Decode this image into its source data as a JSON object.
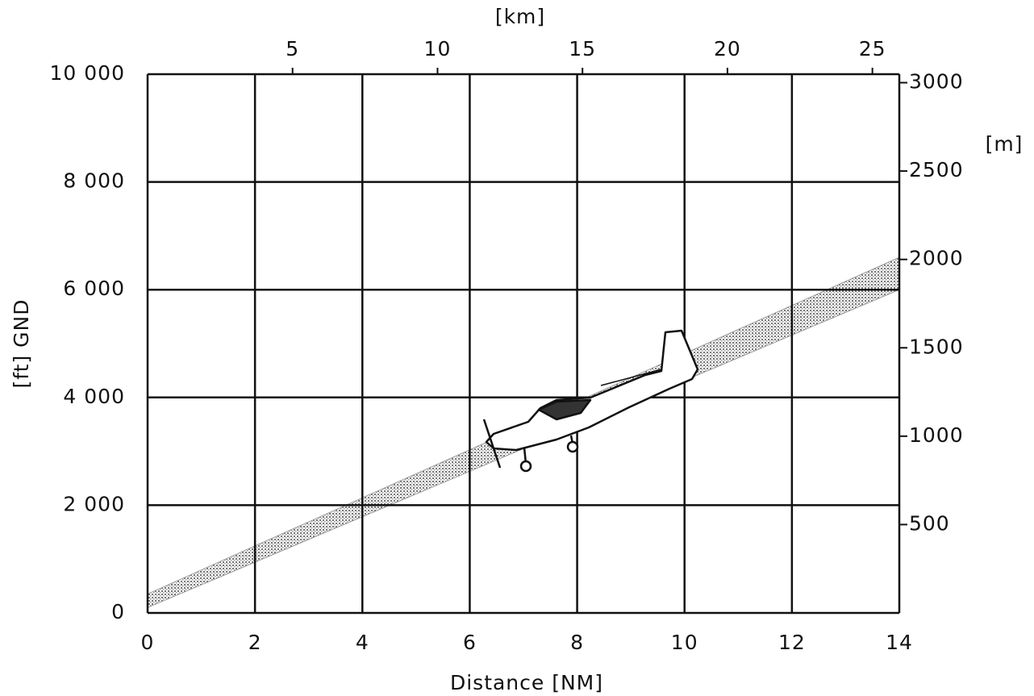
{
  "chart_data": {
    "type": "band",
    "xlabel": "Distance [NM]",
    "ylabel": "[ft] GND",
    "x2label": "[km]",
    "y2label": "[m]",
    "x": [
      0,
      14
    ],
    "series": [
      {
        "color": "#9a9a9a",
        "values": [
          100,
          6000
        ]
      },
      {
        "color": "#9a9a9a",
        "values": [
          350,
          6600
        ]
      }
    ],
    "xlim": [
      0,
      14
    ],
    "xticks": [
      0,
      2,
      4,
      6,
      8,
      10,
      12,
      14
    ],
    "ylim": [
      0,
      10000
    ],
    "yticks": [
      0,
      {
        "value": 2000,
        "label": "2 000"
      },
      {
        "value": 4000,
        "label": "4 000"
      },
      {
        "value": 6000,
        "label": "6 000"
      },
      {
        "value": 8000,
        "label": "8 000"
      },
      {
        "value": 10000,
        "label": "10 000"
      }
    ],
    "x2lim": [
      0,
      25.928
    ],
    "x2ticks": [
      5,
      10,
      15,
      20,
      25
    ],
    "y2lim": [
      0,
      3048
    ],
    "y2ticks": [
      500,
      1000,
      1500,
      2000,
      2500,
      3000
    ],
    "grid": true
  }
}
